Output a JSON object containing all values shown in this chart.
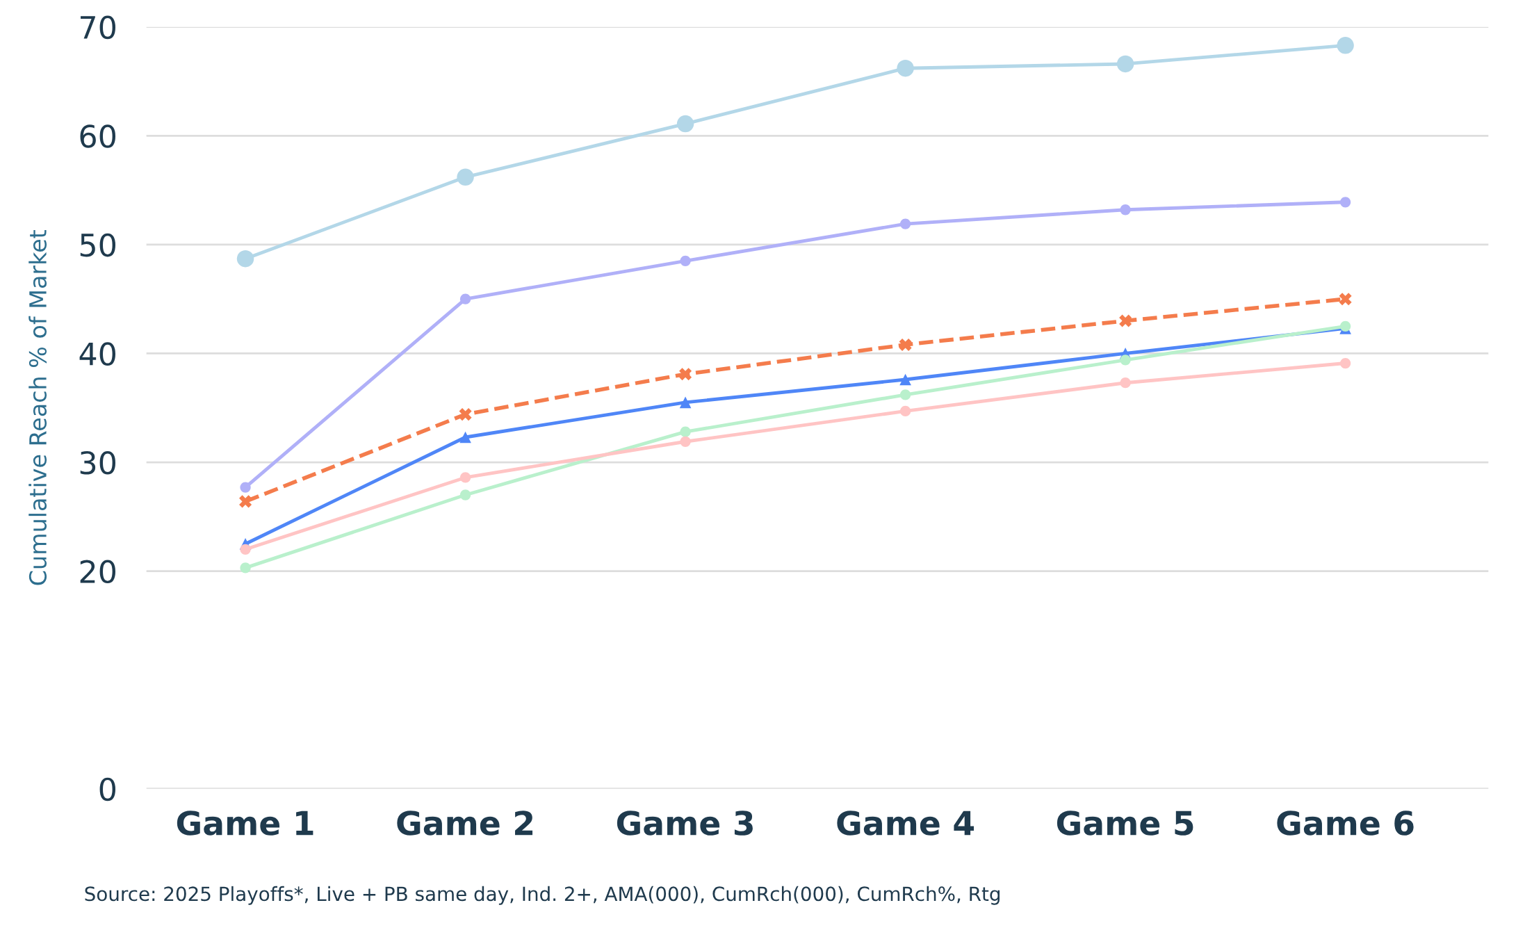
{
  "chart_data": {
    "type": "line",
    "ylabel": "Cumulative Reach % of Market",
    "categories": [
      "Game 1",
      "Game 2",
      "Game 3",
      "Game 4",
      "Game 5",
      "Game 6"
    ],
    "series": [
      {
        "color": "#b3d7e8",
        "marker": "circle",
        "line_style": "solid",
        "values": [
          48.7,
          56.2,
          61.1,
          66.2,
          66.6,
          68.3
        ]
      },
      {
        "color": "#b0b0f8",
        "marker": "circle",
        "line_style": "solid",
        "values": [
          27.7,
          45.0,
          48.5,
          51.9,
          53.2,
          53.9
        ]
      },
      {
        "color": "#f47c4c",
        "marker": "cross",
        "line_style": "dashed",
        "values": [
          26.4,
          34.4,
          38.1,
          40.8,
          43.0,
          45.0
        ]
      },
      {
        "color": "#4f86f7",
        "marker": "triangle",
        "line_style": "solid",
        "values": [
          22.5,
          32.3,
          35.5,
          37.6,
          40.0,
          42.3
        ]
      },
      {
        "color": "#b9f0cc",
        "marker": "circle",
        "line_style": "solid",
        "values": [
          20.3,
          27.0,
          32.8,
          36.2,
          39.4,
          42.5
        ]
      },
      {
        "color": "#ffc4c4",
        "marker": "circle",
        "line_style": "solid",
        "values": [
          22.0,
          28.6,
          31.9,
          34.7,
          37.3,
          39.1
        ]
      }
    ],
    "ylim": [
      0,
      70
    ],
    "yticks": [
      0,
      20,
      30,
      40,
      50,
      60,
      70
    ],
    "grid": "y",
    "annotations": [
      "Source: 2025 Playoffs*, Live + PB same day, Ind. 2+, AMA(000), CumRch(000), CumRch%, Rtg"
    ]
  }
}
